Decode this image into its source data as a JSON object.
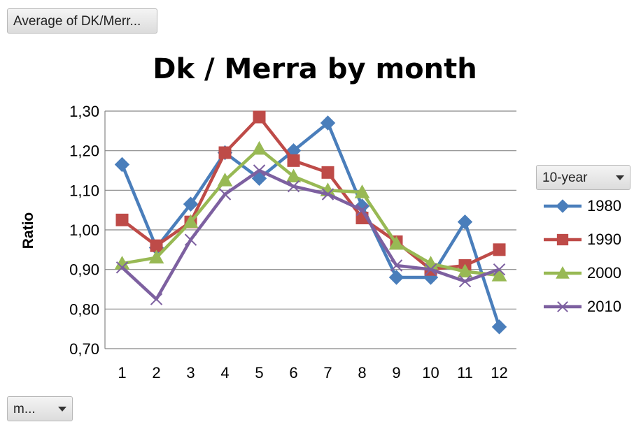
{
  "value_field_button": "Average of DK/Merr...",
  "axis_field_button": "m...",
  "legend_field_button": "10-year",
  "chart_data": {
    "type": "line",
    "title": "Dk / Merra by month",
    "xlabel": "",
    "ylabel": "Ratio",
    "categories": [
      "1",
      "2",
      "3",
      "4",
      "5",
      "6",
      "7",
      "8",
      "9",
      "10",
      "11",
      "12"
    ],
    "ylim": [
      0.7,
      1.3
    ],
    "yticks": [
      "0,70",
      "0,80",
      "0,90",
      "1,00",
      "1,10",
      "1,20",
      "1,30"
    ],
    "grid": true,
    "legend_position": "right",
    "series": [
      {
        "name": "1980",
        "color": "#4a7ebb",
        "marker": "diamond",
        "values": [
          1.165,
          0.955,
          1.065,
          1.195,
          1.13,
          1.2,
          1.27,
          1.06,
          0.88,
          0.88,
          1.02,
          0.755
        ]
      },
      {
        "name": "1990",
        "color": "#be4b48",
        "marker": "square",
        "values": [
          1.025,
          0.96,
          1.02,
          1.195,
          1.285,
          1.175,
          1.145,
          1.03,
          0.97,
          0.9,
          0.91,
          0.95
        ]
      },
      {
        "name": "2000",
        "color": "#98b954",
        "marker": "triangle",
        "values": [
          0.915,
          0.93,
          1.02,
          1.125,
          1.205,
          1.135,
          1.1,
          1.095,
          0.965,
          0.915,
          0.895,
          0.885
        ]
      },
      {
        "name": "2010",
        "color": "#7d60a0",
        "marker": "x",
        "values": [
          0.905,
          0.825,
          0.975,
          1.09,
          1.15,
          1.11,
          1.09,
          1.05,
          0.91,
          0.9,
          0.87,
          0.9
        ]
      }
    ]
  }
}
